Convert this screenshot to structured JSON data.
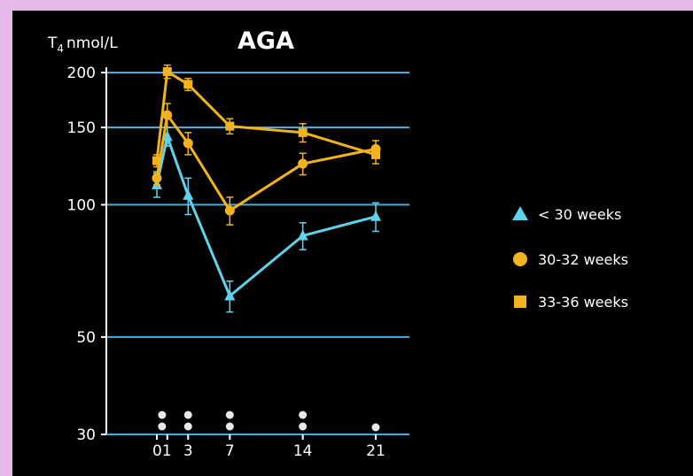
{
  "chart_data": {
    "type": "line",
    "title": "AGA",
    "ylabel": "nmol/L",
    "ylabel_subscript": "4",
    "ylabel_prefix": "T",
    "yscale": "log",
    "ylim": [
      30,
      200
    ],
    "yticks": [
      30,
      50,
      100,
      150,
      200
    ],
    "xlim": [
      0,
      22
    ],
    "xticks": [
      {
        "value": 0.5,
        "label": "01"
      },
      {
        "value": 3,
        "label": "3"
      },
      {
        "value": 7,
        "label": "7"
      },
      {
        "value": 14,
        "label": "14"
      },
      {
        "value": 21,
        "label": "21"
      }
    ],
    "grid": "horizontal",
    "legend_position": "right",
    "series": [
      {
        "name": "< 30 weeks",
        "marker": "triangle",
        "color": "#5fd3ec",
        "points": [
          {
            "x": 0,
            "y": 111,
            "err": 7
          },
          {
            "x": 1,
            "y": 143,
            "err": 7
          },
          {
            "x": 3,
            "y": 105,
            "err": 10
          },
          {
            "x": 7,
            "y": 62,
            "err": 5
          },
          {
            "x": 14,
            "y": 85,
            "err": 6
          },
          {
            "x": 21,
            "y": 94,
            "err": 7
          }
        ]
      },
      {
        "name": "30-32 weeks",
        "marker": "circle",
        "color": "#f3b31c",
        "points": [
          {
            "x": 0,
            "y": 115,
            "err": 4
          },
          {
            "x": 1,
            "y": 160,
            "err": 10
          },
          {
            "x": 3,
            "y": 138,
            "err": 8
          },
          {
            "x": 7,
            "y": 97,
            "err": 7
          },
          {
            "x": 14,
            "y": 124,
            "err": 7
          },
          {
            "x": 21,
            "y": 134,
            "err": 6
          }
        ]
      },
      {
        "name": "33-36 weeks",
        "marker": "square",
        "color": "#f3b31c",
        "points": [
          {
            "x": 0,
            "y": 126,
            "err": 4
          },
          {
            "x": 1,
            "y": 201,
            "err": 7
          },
          {
            "x": 3,
            "y": 188,
            "err": 6
          },
          {
            "x": 7,
            "y": 151,
            "err": 6
          },
          {
            "x": 14,
            "y": 146,
            "err": 7
          },
          {
            "x": 21,
            "y": 130,
            "err": 6
          }
        ]
      }
    ],
    "significance_marks": [
      {
        "x": 1,
        "count": 2
      },
      {
        "x": 3,
        "count": 2
      },
      {
        "x": 7,
        "count": 2
      },
      {
        "x": 14,
        "count": 2
      },
      {
        "x": 21,
        "count": 1
      }
    ]
  },
  "colors": {
    "frame": "#e6b8ea",
    "background": "#000000",
    "gridline": "#3fb0e4",
    "axis": "#ffffff"
  }
}
